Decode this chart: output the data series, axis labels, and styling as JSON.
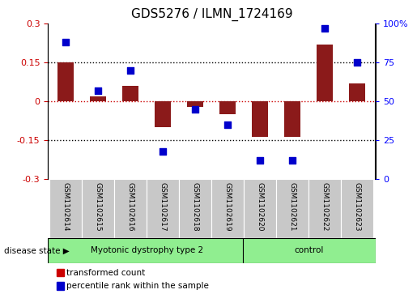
{
  "title": "GDS5276 / ILMN_1724169",
  "samples": [
    "GSM1102614",
    "GSM1102615",
    "GSM1102616",
    "GSM1102617",
    "GSM1102618",
    "GSM1102619",
    "GSM1102620",
    "GSM1102621",
    "GSM1102622",
    "GSM1102623"
  ],
  "red_values": [
    0.15,
    0.02,
    0.06,
    -0.1,
    -0.02,
    -0.05,
    -0.135,
    -0.135,
    0.22,
    0.07
  ],
  "blue_values": [
    88,
    57,
    70,
    18,
    45,
    35,
    12,
    12,
    97,
    75
  ],
  "ylim_left": [
    -0.3,
    0.3
  ],
  "ylim_right": [
    0,
    100
  ],
  "yticks_left": [
    -0.3,
    -0.15,
    0,
    0.15,
    0.3
  ],
  "yticks_right": [
    0,
    25,
    50,
    75,
    100
  ],
  "hlines": [
    0.15,
    0.0,
    -0.15
  ],
  "disease_groups": [
    {
      "label": "Myotonic dystrophy type 2",
      "start": 0,
      "end": 6
    },
    {
      "label": "control",
      "start": 6,
      "end": 10
    }
  ],
  "disease_state_label": "disease state",
  "legend_items": [
    {
      "color": "#CC0000",
      "label": "transformed count"
    },
    {
      "color": "#0000CC",
      "label": "percentile rank within the sample"
    }
  ],
  "bar_color": "#8B1A1A",
  "dot_color": "#0000CC",
  "dot_size": 40,
  "bar_width": 0.5,
  "group_color": "#90EE90",
  "sample_box_color": "#C8C8C8",
  "background_color": "#ffffff",
  "red_line_color": "#CC0000",
  "title_fontsize": 11,
  "tick_fontsize": 8,
  "sample_fontsize": 6.5,
  "legend_fontsize": 7.5,
  "disease_fontsize": 7.5
}
